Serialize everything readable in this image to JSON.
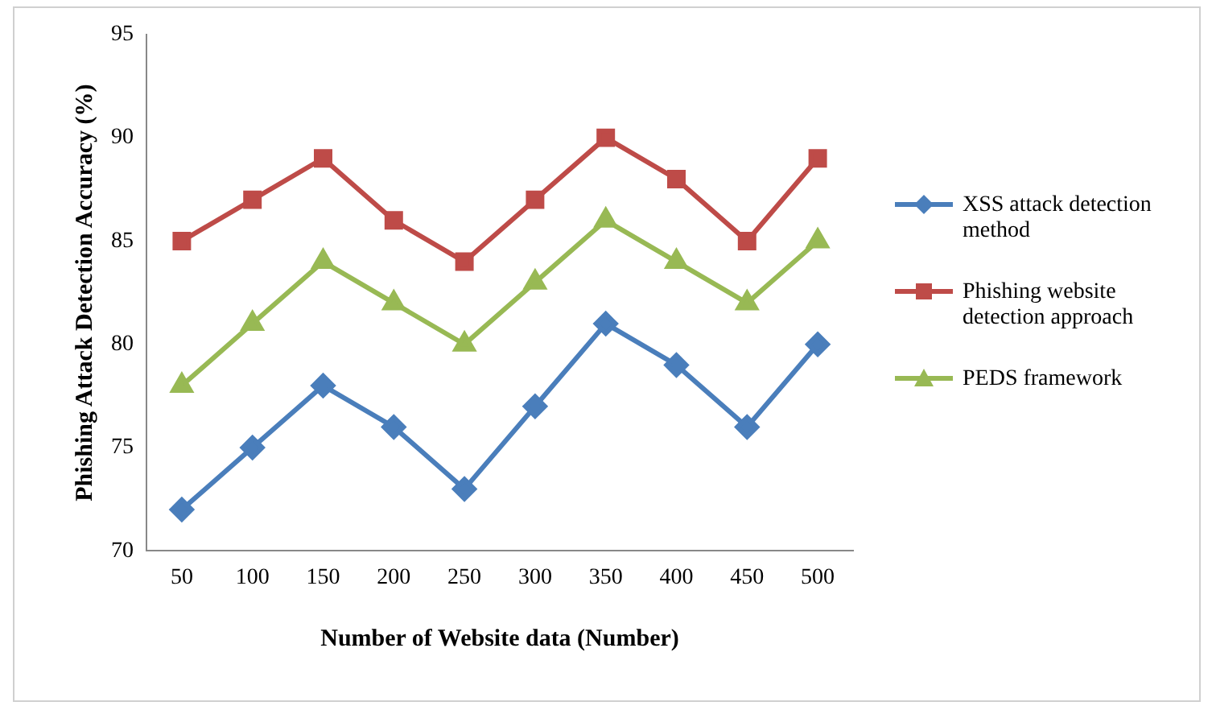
{
  "chart_data": {
    "type": "line",
    "xlabel": "Number of Website data (Number)",
    "ylabel": "Phishing Attack Detection Accuracy (%)",
    "categories": [
      "50",
      "100",
      "150",
      "200",
      "250",
      "300",
      "350",
      "400",
      "450",
      "500"
    ],
    "ylim": [
      70,
      95
    ],
    "yticks": [
      70,
      75,
      80,
      85,
      90,
      95
    ],
    "grid": false,
    "legend": "right",
    "series": [
      {
        "name": "XSS attack detection method",
        "color": "#4a7ebb",
        "marker": "diamond",
        "values": [
          72,
          75,
          78,
          76,
          73,
          77,
          81,
          79,
          76,
          80
        ]
      },
      {
        "name": "Phishing website detection approach",
        "color": "#be4b48",
        "marker": "square",
        "values": [
          85,
          87,
          89,
          86,
          84,
          87,
          90,
          88,
          85,
          89
        ]
      },
      {
        "name": "PEDS framework",
        "color": "#98b954",
        "marker": "triangle",
        "values": [
          78,
          81,
          84,
          82,
          80,
          83,
          86,
          84,
          82,
          85
        ]
      }
    ]
  }
}
